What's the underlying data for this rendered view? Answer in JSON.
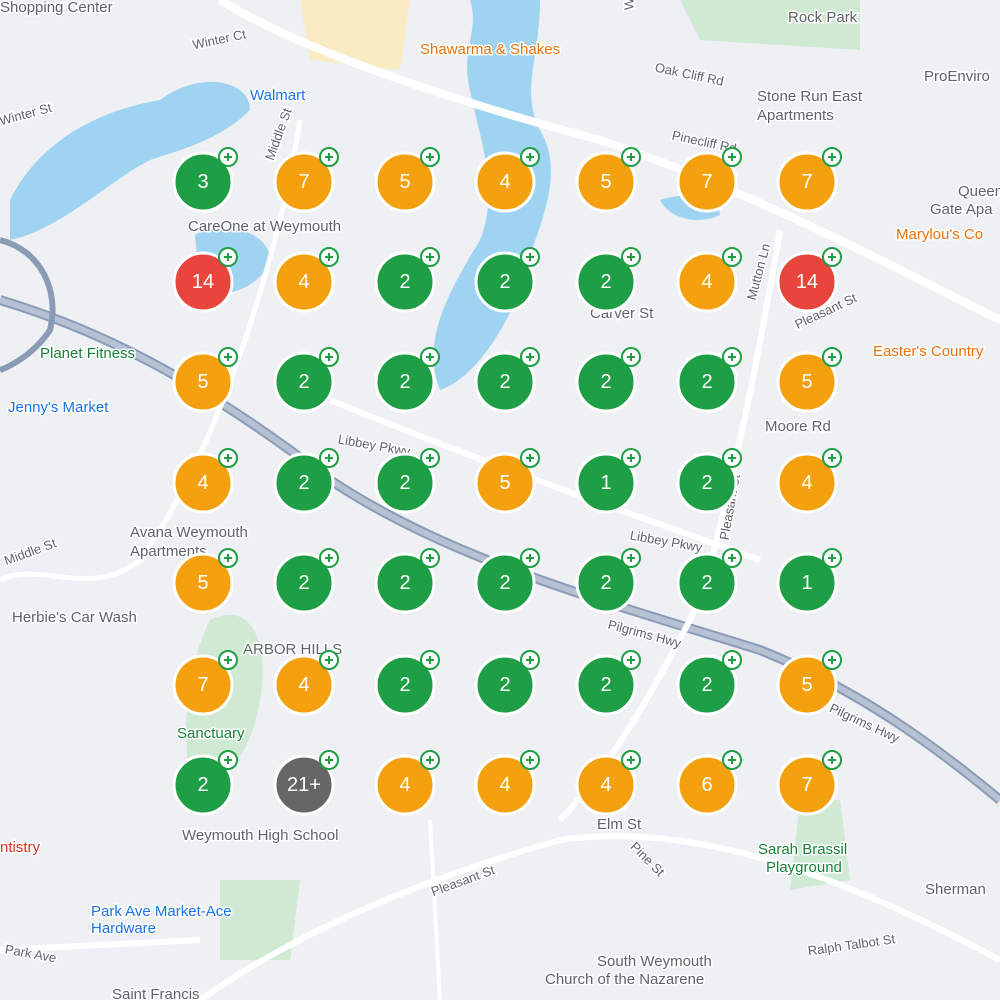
{
  "map_labels": [
    "Shopping Center",
    "Winter Ct",
    "Shawarma & Shakes",
    "Rock Park",
    "Oak Cliff Rd",
    "ProEnviro",
    "Walmart",
    "Stone Run East",
    "Apartments",
    "Winter St",
    "Middle St",
    "Pinecliff Rd",
    "Queen",
    "Gate Apa",
    "CareOne at Weymouth",
    "Marylou's Co",
    "Mutton Ln",
    "Pleasant St",
    "Carver St",
    "Planet Fitness",
    "Easter's Country",
    "Jenny's Market",
    "Moore Rd",
    "Libbey Pkwy",
    "Avana Weymouth",
    "Apartments",
    "Middle St",
    "Herbie's Car Wash",
    "Pilgrims Hwy",
    "ARBOR HILLS",
    "Sanctuary",
    "Weymouth High School",
    "Elm St",
    "Pine St",
    "Sarah Brassil",
    "Playground",
    "Sherman",
    "Park Ave Market-Ace",
    "Hardware",
    "Park Ave",
    "Pleasant St",
    "South Weymouth",
    "Church of the Nazarene",
    "Ralph Talbot St",
    "Saint Francis",
    "ntistry",
    "Pilgrims Hwy",
    "Westminster Rd",
    "Libbey Pkwy",
    "Pleasant St"
  ],
  "clusters": {
    "rows": [
      [
        "3",
        "7",
        "5",
        "4",
        "5",
        "7",
        "7"
      ],
      [
        "14",
        "4",
        "2",
        "2",
        "2",
        "4",
        "14"
      ],
      [
        "5",
        "2",
        "2",
        "2",
        "2",
        "2",
        "5"
      ],
      [
        "4",
        "2",
        "2",
        "5",
        "1",
        "2",
        "4"
      ],
      [
        "5",
        "2",
        "2",
        "2",
        "2",
        "2",
        "1"
      ],
      [
        "7",
        "4",
        "2",
        "2",
        "2",
        "2",
        "5"
      ],
      [
        "2",
        "21+",
        "4",
        "4",
        "4",
        "6",
        "7"
      ]
    ]
  }
}
